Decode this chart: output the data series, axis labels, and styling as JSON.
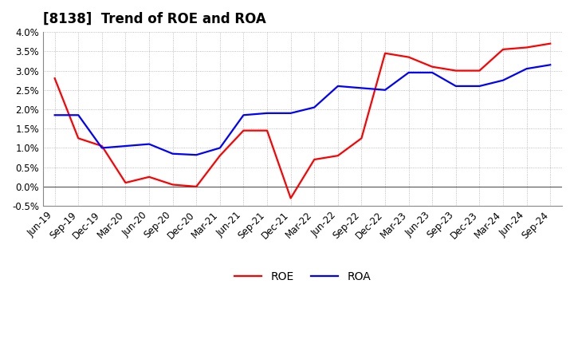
{
  "title": "[8138]  Trend of ROE and ROA",
  "labels": [
    "Jun-19",
    "Sep-19",
    "Dec-19",
    "Mar-20",
    "Jun-20",
    "Sep-20",
    "Dec-20",
    "Mar-21",
    "Jun-21",
    "Sep-21",
    "Dec-21",
    "Mar-22",
    "Jun-22",
    "Sep-22",
    "Dec-22",
    "Mar-23",
    "Jun-23",
    "Sep-23",
    "Dec-23",
    "Mar-24",
    "Jun-24",
    "Sep-24"
  ],
  "ROE": [
    2.8,
    1.25,
    1.05,
    0.1,
    0.25,
    0.05,
    0.0,
    0.8,
    1.45,
    1.45,
    -0.3,
    0.7,
    0.8,
    1.25,
    3.45,
    3.35,
    3.1,
    3.0,
    3.0,
    3.55,
    3.6,
    3.7
  ],
  "ROA": [
    1.85,
    1.85,
    1.0,
    1.05,
    1.1,
    0.85,
    0.82,
    1.0,
    1.85,
    1.9,
    1.9,
    2.05,
    2.6,
    2.55,
    2.5,
    2.95,
    2.95,
    2.6,
    2.6,
    2.75,
    3.05,
    3.15
  ],
  "roe_color": "#ff0000",
  "roa_color": "#0000ff",
  "ylim": [
    -0.5,
    4.0
  ],
  "yticks": [
    -0.5,
    0.0,
    0.5,
    1.0,
    1.5,
    2.0,
    2.5,
    3.0,
    3.5,
    4.0
  ],
  "background_color": "#ffffff",
  "grid_color": "#aaaaaa",
  "legend_labels": [
    "ROE",
    "ROA"
  ],
  "title_fontsize": 12,
  "axis_fontsize": 8.5,
  "legend_fontsize": 10,
  "line_width": 1.6
}
